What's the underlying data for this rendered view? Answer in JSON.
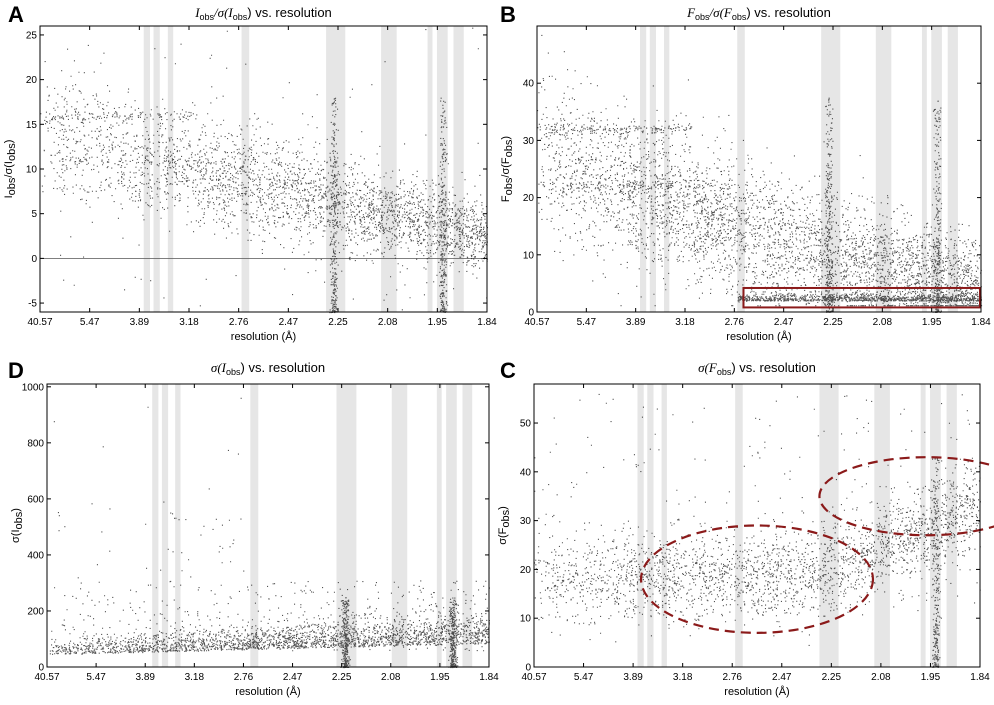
{
  "colors": {
    "points": "#1a1a1a",
    "ice_ring_band": "#e6e6e6",
    "highlight": "#8b1a1a",
    "axis": "#000000"
  },
  "chart_data": [
    {
      "panel": "A",
      "type": "scatter",
      "title": {
        "pre": "I",
        "pre_sub": "obs",
        "mid": "/σ(I",
        "mid_sub": "obs",
        "post": ") vs. resolution"
      },
      "xlabel": "resolution (Å)",
      "ylabel": {
        "pre": "I",
        "pre_sub": "obs",
        "mid": "/σ(I",
        "mid_sub": "obs",
        "post": ")"
      },
      "x_tick_labels": [
        "40.57",
        "5.47",
        "3.89",
        "3.18",
        "2.76",
        "2.47",
        "2.25",
        "2.08",
        "1.95",
        "1.84"
      ],
      "ylim": [
        -6,
        26
      ],
      "y_ticks": [
        -5,
        0,
        5,
        10,
        15,
        20,
        25
      ],
      "zero_line": true,
      "ice_ring_bands_fraction": [
        [
          0.232,
          0.246
        ],
        [
          0.254,
          0.268
        ],
        [
          0.286,
          0.298
        ],
        [
          0.451,
          0.468
        ],
        [
          0.64,
          0.683
        ],
        [
          0.763,
          0.798
        ],
        [
          0.867,
          0.878
        ],
        [
          0.888,
          0.912
        ],
        [
          0.925,
          0.948
        ]
      ],
      "spikes_fraction": [
        0.657,
        0.901
      ],
      "density_model": "I/sigma decreases from ~15 at low resolution to ~2 at high resolution; horizontal streaks near 16, 11 and 8 at low resolution; spikes at ice rings"
    },
    {
      "panel": "B",
      "type": "scatter",
      "title": {
        "pre": "F",
        "pre_sub": "obs",
        "mid": "/σ(F",
        "mid_sub": "obs",
        "post": ") vs. resolution"
      },
      "xlabel": "resolution (Å)",
      "ylabel": {
        "pre": "F",
        "pre_sub": "obs",
        "mid": "/σ(F",
        "mid_sub": "obs",
        "post": ")"
      },
      "x_tick_labels": [
        "40.57",
        "5.47",
        "3.89",
        "3.18",
        "2.76",
        "2.47",
        "2.25",
        "2.08",
        "1.95",
        "1.84"
      ],
      "ylim": [
        0,
        50
      ],
      "y_ticks": [
        0,
        10,
        20,
        30,
        40
      ],
      "ice_ring_bands_fraction": [
        [
          0.232,
          0.246
        ],
        [
          0.254,
          0.268
        ],
        [
          0.286,
          0.298
        ],
        [
          0.451,
          0.468
        ],
        [
          0.64,
          0.683
        ],
        [
          0.763,
          0.798
        ],
        [
          0.867,
          0.878
        ],
        [
          0.888,
          0.912
        ],
        [
          0.925,
          0.948
        ]
      ],
      "spikes_fraction": [
        0.657,
        0.901
      ],
      "highlight_box": {
        "x_fraction": [
          0.465,
          1.0
        ],
        "y": [
          0.8,
          4.2
        ]
      },
      "density_model": "F/sigma decreases from ~30 at low resolution to ~4 at high resolution; floor band near 2 at high resolution"
    },
    {
      "panel": "D",
      "type": "scatter",
      "title": {
        "pre": "σ(I",
        "pre_sub": "obs",
        "post": ") vs. resolution"
      },
      "xlabel": "resolution (Å)",
      "ylabel": {
        "pre": "σ(I",
        "pre_sub": "obs",
        "post": ")"
      },
      "x_tick_labels": [
        "40.57",
        "5.47",
        "3.89",
        "3.18",
        "2.76",
        "2.47",
        "2.25",
        "2.08",
        "1.95",
        "1.84"
      ],
      "ylim": [
        0,
        1010
      ],
      "y_ticks": [
        0,
        200,
        400,
        600,
        800,
        1000
      ],
      "ice_ring_bands_fraction": [
        [
          0.238,
          0.252
        ],
        [
          0.26,
          0.274
        ],
        [
          0.29,
          0.302
        ],
        [
          0.46,
          0.478
        ],
        [
          0.655,
          0.7
        ],
        [
          0.78,
          0.815
        ],
        [
          0.882,
          0.893
        ],
        [
          0.903,
          0.927
        ],
        [
          0.94,
          0.962
        ]
      ],
      "spikes_fraction": [
        0.674,
        0.918
      ],
      "density_model": "sigma(I) mostly 40-120, denser at high resolution; sparse tail up to 1000 at low resolution"
    },
    {
      "panel": "C",
      "type": "scatter",
      "title": {
        "pre": "σ(F",
        "pre_sub": "obs",
        "post": ") vs. resolution"
      },
      "xlabel": "resolution (Å)",
      "ylabel": {
        "pre": "σ(F",
        "pre_sub": "obs",
        "post": ")"
      },
      "x_tick_labels": [
        "40.57",
        "5.47",
        "3.89",
        "3.18",
        "2.76",
        "2.47",
        "2.25",
        "2.08",
        "1.95",
        "1.84"
      ],
      "ylim": [
        0,
        58
      ],
      "y_ticks": [
        0,
        10,
        20,
        30,
        40,
        50
      ],
      "ice_ring_bands_fraction": [
        [
          0.232,
          0.246
        ],
        [
          0.254,
          0.268
        ],
        [
          0.286,
          0.298
        ],
        [
          0.451,
          0.468
        ],
        [
          0.64,
          0.683
        ],
        [
          0.763,
          0.798
        ],
        [
          0.867,
          0.878
        ],
        [
          0.888,
          0.912
        ],
        [
          0.925,
          0.948
        ]
      ],
      "spikes_fraction": [
        0.901
      ],
      "highlight_ellipses": [
        {
          "cx_fraction": 0.5,
          "cy": 18,
          "rx_fraction": 0.26,
          "ry": 11
        },
        {
          "cx_fraction": 0.88,
          "cy": 35,
          "rx_fraction": 0.24,
          "ry": 8
        }
      ],
      "density_model": "sigma(F) rises from ~18 at medium resolution to ~33 at high resolution; scattered points up to 55"
    }
  ]
}
